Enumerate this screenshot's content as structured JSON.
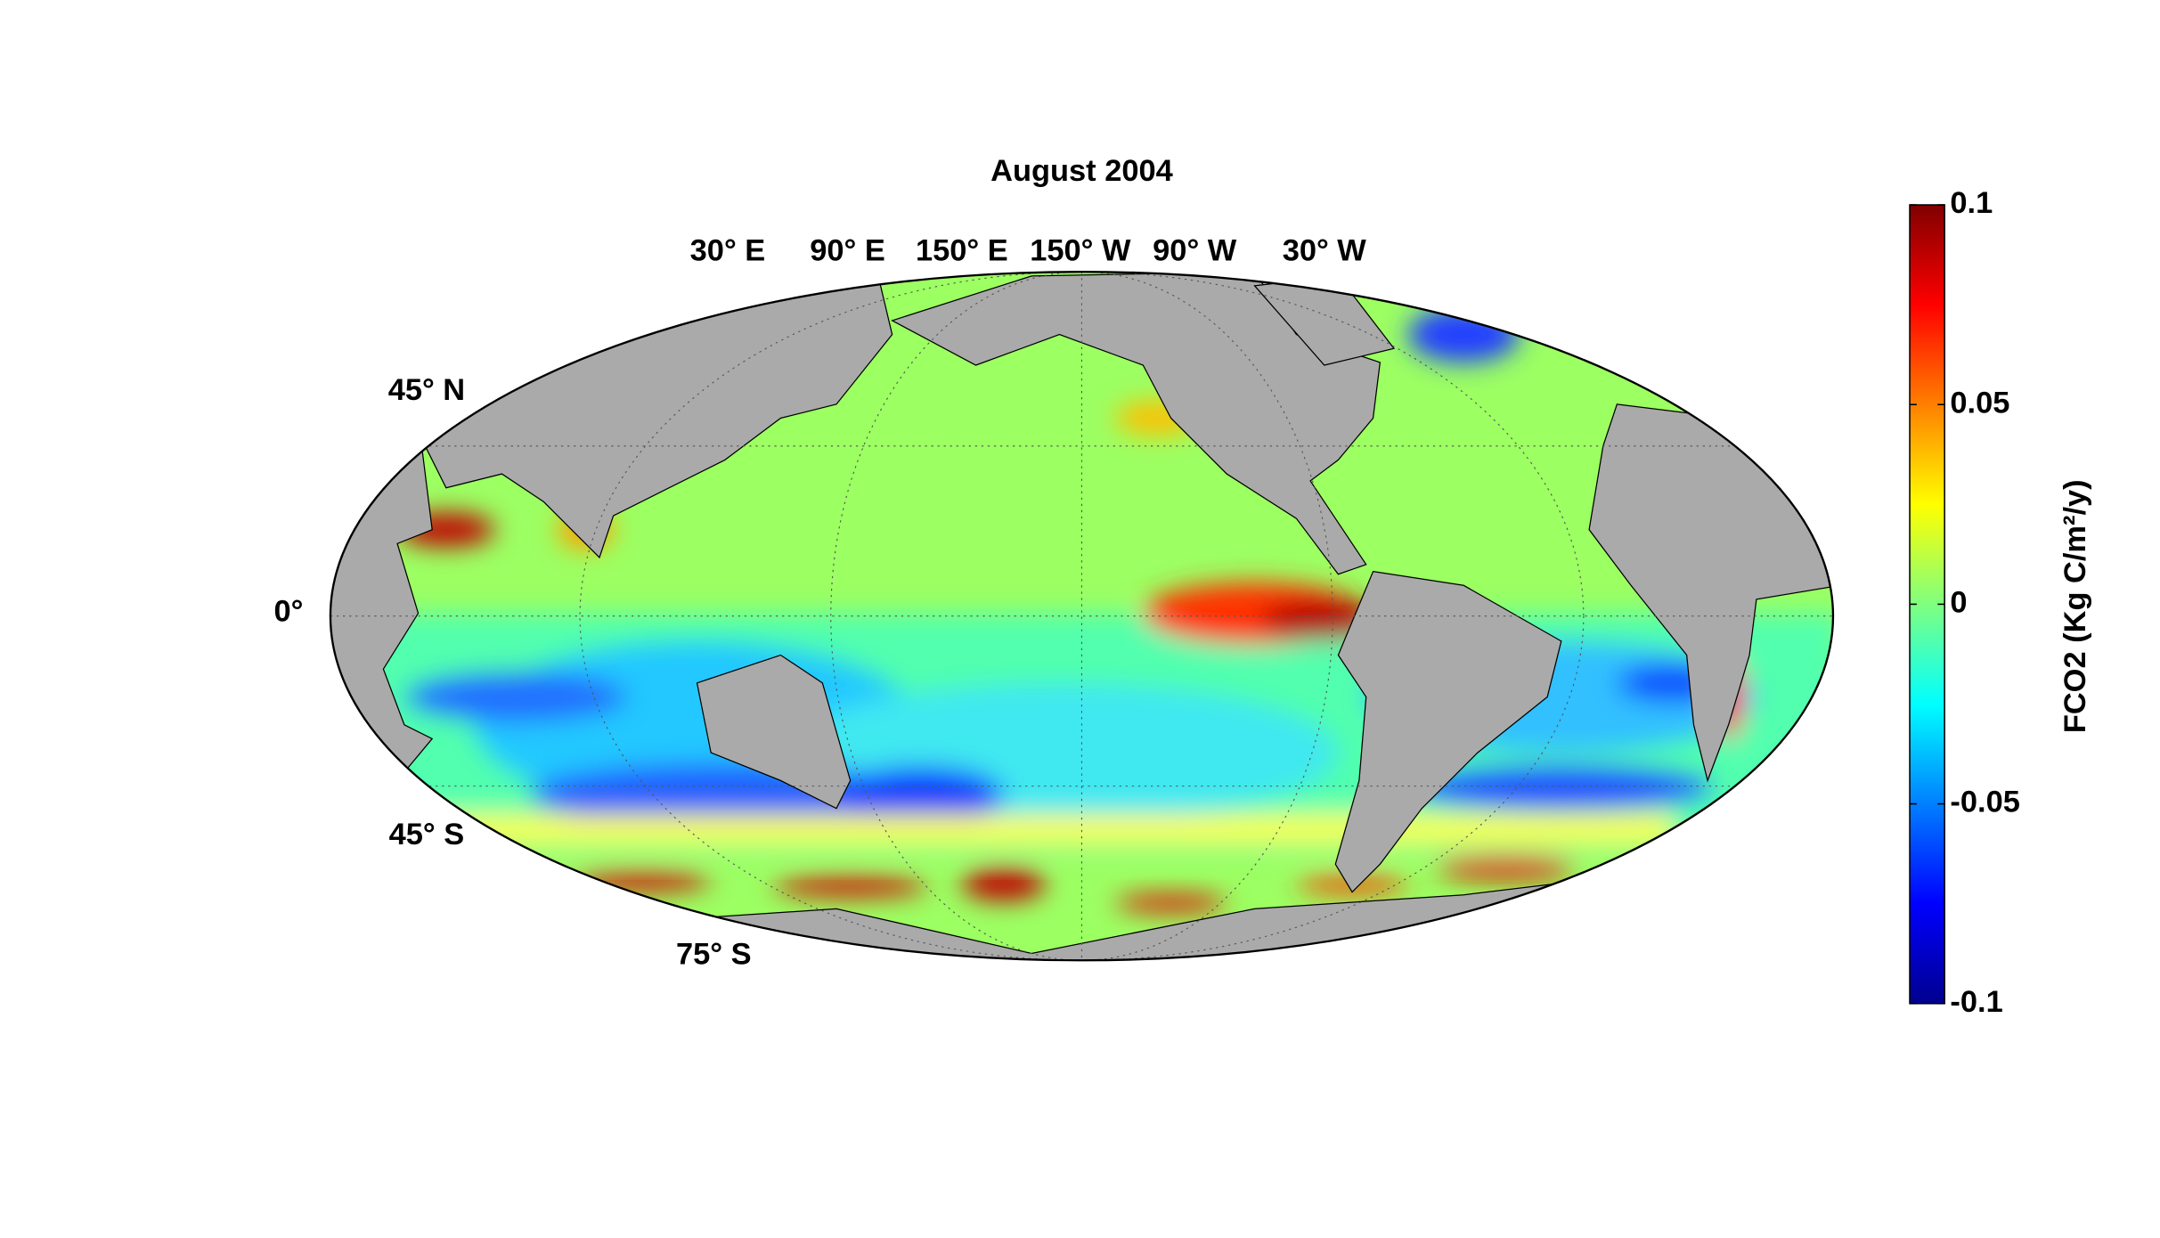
{
  "map": {
    "title": "August 2004",
    "lon_labels": [
      "30° E",
      "90° E",
      "150° E",
      "150° W",
      "90° W",
      "30° W"
    ],
    "lat_labels": [
      "45° N",
      "0°",
      "45° S",
      "75° S"
    ],
    "colorbar": {
      "label": "FCO2 (Kg C/m²/y)",
      "lim": [
        -0.1,
        0.1
      ],
      "ticks": [
        -0.1,
        -0.05,
        0,
        0.05,
        0.1
      ]
    }
  }
}
